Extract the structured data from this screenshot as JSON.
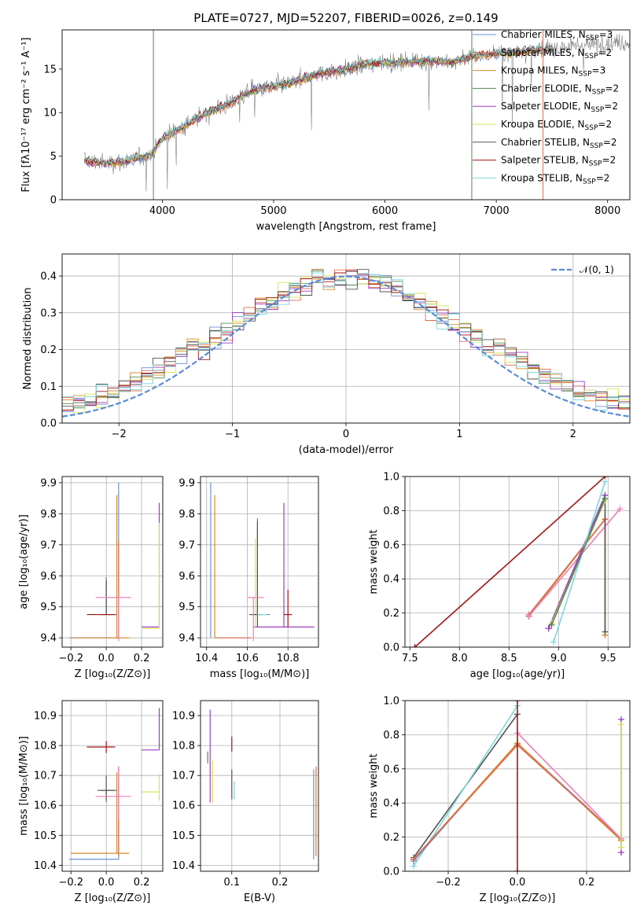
{
  "figure": {
    "title": "PLATE=0727, MJD=52207, FIBERID=0026, z=0.149"
  },
  "colors": {
    "Chabrier MILES": "#6b8fd6",
    "Salpeter MILES": "#e06a4c",
    "Kroupa MILES": "#d98c2a",
    "Chabrier ELODIE": "#4f8a4f",
    "Salpeter ELODIE": "#9b3fbf",
    "Kroupa ELODIE": "#d7e45a",
    "Chabrier STELIB": "#555555",
    "Salpeter STELIB": "#a01515",
    "Kroupa STELIB": "#7fd6dc",
    "data": "#808080",
    "normal": "#5b8bd6",
    "extra": "#e880b8"
  },
  "chart_data": [
    {
      "id": "spectrum",
      "type": "line",
      "title": "PLATE=0727, MJD=52207, FIBERID=0026, z=0.149",
      "xlabel": "wavelength [Angstrom, rest frame]",
      "ylabel": "Flux [fλ10⁻¹⁷ erg cm⁻² s⁻¹ A⁻¹]",
      "xlim": [
        3100,
        8200
      ],
      "ylim": [
        0,
        19.5
      ],
      "xticks": [
        4000,
        5000,
        6000,
        7000,
        8000
      ],
      "yticks": [
        0,
        5,
        10,
        15
      ],
      "grid": false,
      "legend_position": "top-right",
      "legend": [
        {
          "label": "Chabrier MILES, N",
          "sub": "SSP",
          "tail": "=3",
          "series": "Chabrier MILES"
        },
        {
          "label": "Salpeter MILES, N",
          "sub": "SSP",
          "tail": "=2",
          "series": "Salpeter MILES"
        },
        {
          "label": "Kroupa MILES, N",
          "sub": "SSP",
          "tail": "=3",
          "series": "Kroupa MILES"
        },
        {
          "label": "Chabrier ELODIE, N",
          "sub": "SSP",
          "tail": "=2",
          "series": "Chabrier ELODIE"
        },
        {
          "label": "Salpeter ELODIE, N",
          "sub": "SSP",
          "tail": "=2",
          "series": "Salpeter ELODIE"
        },
        {
          "label": "Kroupa ELODIE, N",
          "sub": "SSP",
          "tail": "=2",
          "series": "Kroupa ELODIE"
        },
        {
          "label": "Chabrier STELIB, N",
          "sub": "SSP",
          "tail": "=2",
          "series": "Chabrier STELIB"
        },
        {
          "label": "Salpeter STELIB, N",
          "sub": "SSP",
          "tail": "=2",
          "series": "Salpeter STELIB"
        },
        {
          "label": "Kroupa STELIB, N",
          "sub": "SSP",
          "tail": "=2",
          "series": "Kroupa STELIB"
        }
      ],
      "continuum": {
        "x": [
          3300,
          3500,
          3700,
          3900,
          4000,
          4200,
          4400,
          4600,
          4800,
          5000,
          5200,
          5400,
          5600,
          5800,
          6000,
          6200,
          6400,
          6600,
          6800,
          7000,
          7200,
          7400,
          7600,
          7800,
          8000
        ],
        "y": [
          4.5,
          4.2,
          4.5,
          5.2,
          7.0,
          8.5,
          10.0,
          11.0,
          12.5,
          13.0,
          13.5,
          14.5,
          14.8,
          15.5,
          15.8,
          15.8,
          16.0,
          15.8,
          16.5,
          16.8,
          17.0,
          17.2,
          17.5,
          17.8,
          18.0
        ]
      },
      "models_xrange": [
        3300,
        7500
      ],
      "vertical_lines": [
        {
          "x": 3920,
          "series": "Chabrier ELODIE"
        },
        {
          "x": 6780,
          "series": "Chabrier ELODIE"
        },
        {
          "x": 7420,
          "series": "Salpeter MILES"
        }
      ]
    },
    {
      "id": "residuals",
      "type": "histogram",
      "xlabel": "(data-model)/error",
      "ylabel": "Normed distribution",
      "xlim": [
        -2.5,
        2.5
      ],
      "ylim": [
        0,
        0.46
      ],
      "xticks": [
        -2,
        -1,
        0,
        1,
        2
      ],
      "yticks": [
        0.0,
        0.1,
        0.2,
        0.3,
        0.4
      ],
      "grid": true,
      "legend_position": "top-right",
      "legend": [
        {
          "label": "𝒩(0, 1)",
          "series": "normal"
        }
      ],
      "bin_width": 0.1,
      "normal": {
        "mean": 0,
        "sigma": 1
      }
    },
    {
      "id": "age-vs-Z",
      "type": "errorbar",
      "xlabel": "Z [log₁₀(Z/Z⊙)]",
      "ylabel": "age  [log₁₀(age/yr)]",
      "xlim": [
        -0.25,
        0.32
      ],
      "ylim": [
        9.37,
        9.92
      ],
      "xticks": [
        -0.2,
        0.0,
        0.2
      ],
      "yticks": [
        9.4,
        9.5,
        9.6,
        9.7,
        9.8,
        9.9
      ],
      "grid": true,
      "points": [
        {
          "x": 0.07,
          "y": 9.4,
          "xerr": [
            0.28,
            0.0
          ],
          "yerr": [
            0.0,
            0.5
          ],
          "series": "Chabrier MILES"
        },
        {
          "x": 0.07,
          "y": 9.4,
          "xerr": [
            0.0,
            0.0
          ],
          "yerr": [
            0.0,
            0.31
          ],
          "series": "Salpeter MILES"
        },
        {
          "x": 0.06,
          "y": 9.4,
          "xerr": [
            0.26,
            0.07
          ],
          "yerr": [
            0.0,
            0.46
          ],
          "series": "Kroupa MILES"
        },
        {
          "x": 0.0,
          "y": 9.475,
          "xerr": [
            0.03,
            0.06
          ],
          "yerr": [
            0.0,
            0.12
          ],
          "series": "Chabrier ELODIE"
        },
        {
          "x": 0.3,
          "y": 9.435,
          "xerr": [
            0.1,
            0.0
          ],
          "yerr": [
            0.0,
            0.4
          ],
          "series": "Salpeter ELODIE"
        },
        {
          "x": 0.3,
          "y": 9.43,
          "xerr": [
            0.1,
            0.0
          ],
          "yerr": [
            0.0,
            0.34
          ],
          "series": "Kroupa ELODIE"
        },
        {
          "x": 0.0,
          "y": 9.475,
          "xerr": [
            0.05,
            0.05
          ],
          "yerr": [
            0.0,
            0.11
          ],
          "series": "Chabrier STELIB"
        },
        {
          "x": 0.0,
          "y": 9.475,
          "xerr": [
            0.11,
            0.05
          ],
          "yerr": [
            0.0,
            0.0
          ],
          "series": "Salpeter STELIB"
        },
        {
          "x": 0.0,
          "y": 9.475,
          "xerr": [
            0.0,
            0.0
          ],
          "yerr": [
            0.0,
            0.0
          ],
          "series": "Kroupa STELIB"
        },
        {
          "x": 0.07,
          "y": 9.53,
          "xerr": [
            0.13,
            0.07
          ],
          "yerr": [
            0.14,
            0.0
          ],
          "series": "extra"
        }
      ]
    },
    {
      "id": "age-vs-mass",
      "type": "errorbar",
      "xlabel": "mass [log₁₀(M/M⊙)]",
      "ylabel": "",
      "xlim": [
        10.37,
        10.95
      ],
      "ylim": [
        9.37,
        9.92
      ],
      "xticks": [
        10.4,
        10.6,
        10.8
      ],
      "yticks": [
        9.4,
        9.5,
        9.6,
        9.7,
        9.8,
        9.9
      ],
      "grid": true,
      "points": [
        {
          "x": 10.42,
          "y": 9.4,
          "xerr": [
            0.0,
            0.0
          ],
          "yerr": [
            0.0,
            0.5
          ],
          "series": "Chabrier MILES"
        },
        {
          "x": 10.44,
          "y": 9.4,
          "xerr": [
            0.0,
            0.0
          ],
          "yerr": [
            0.0,
            0.46
          ],
          "series": "Kroupa MILES"
        },
        {
          "x": 10.44,
          "y": 9.4,
          "xerr": [
            0.0,
            0.18
          ],
          "yerr": [
            0.0,
            0.0
          ],
          "series": "Salpeter MILES"
        },
        {
          "x": 10.65,
          "y": 9.475,
          "xerr": [
            0.03,
            0.06
          ],
          "yerr": [
            0.0,
            0.31
          ],
          "series": "Chabrier ELODIE"
        },
        {
          "x": 10.78,
          "y": 9.435,
          "xerr": [
            0.15,
            0.15
          ],
          "yerr": [
            0.0,
            0.4
          ],
          "series": "Salpeter ELODIE"
        },
        {
          "x": 10.64,
          "y": 9.43,
          "xerr": [
            0.0,
            0.0
          ],
          "yerr": [
            0.0,
            0.29
          ],
          "series": "Kroupa ELODIE"
        },
        {
          "x": 10.65,
          "y": 9.475,
          "xerr": [
            0.04,
            0.02
          ],
          "yerr": [
            0.04,
            0.3
          ],
          "series": "Chabrier STELIB"
        },
        {
          "x": 10.8,
          "y": 9.475,
          "xerr": [
            0.02,
            0.02
          ],
          "yerr": [
            0.04,
            0.08
          ],
          "series": "Salpeter STELIB"
        },
        {
          "x": 10.65,
          "y": 9.475,
          "xerr": [
            0.0,
            0.05
          ],
          "yerr": [
            0.0,
            0.0
          ],
          "series": "Kroupa STELIB"
        },
        {
          "x": 10.63,
          "y": 9.53,
          "xerr": [
            0.03,
            0.05
          ],
          "yerr": [
            0.14,
            0.0
          ],
          "series": "extra"
        }
      ]
    },
    {
      "id": "weight-vs-age",
      "type": "line",
      "xlabel": "age  [log₁₀(age/yr)]",
      "ylabel": "mass weight",
      "xlim": [
        7.45,
        9.72
      ],
      "ylim": [
        0,
        1.0
      ],
      "xticks": [
        7.5,
        8.0,
        8.5,
        9.0,
        9.5
      ],
      "yticks": [
        0.0,
        0.2,
        0.4,
        0.6,
        0.8,
        1.0
      ],
      "grid": true,
      "series": [
        {
          "name": "Salpeter STELIB",
          "x": [
            7.55,
            9.47
          ],
          "y": [
            0.0,
            1.0
          ]
        },
        {
          "name": "Chabrier MILES",
          "x": [
            8.7,
            9.47
          ],
          "y": [
            0.18,
            0.75
          ]
        },
        {
          "name": "Kroupa MILES",
          "x": [
            8.7,
            9.47,
            9.47
          ],
          "y": [
            0.18,
            0.75,
            0.07
          ]
        },
        {
          "name": "Salpeter MILES",
          "x": [
            8.7,
            9.47
          ],
          "y": [
            0.19,
            0.75
          ]
        },
        {
          "name": "extra",
          "x": [
            8.7,
            9.62
          ],
          "y": [
            0.18,
            0.81
          ]
        },
        {
          "name": "Chabrier STELIB",
          "x": [
            8.9,
            9.47,
            9.47
          ],
          "y": [
            0.11,
            0.89,
            0.09
          ]
        },
        {
          "name": "Salpeter ELODIE",
          "x": [
            8.9,
            9.47
          ],
          "y": [
            0.11,
            0.89
          ]
        },
        {
          "name": "Kroupa ELODIE",
          "x": [
            8.93,
            9.47
          ],
          "y": [
            0.14,
            0.86
          ]
        },
        {
          "name": "Kroupa STELIB",
          "x": [
            8.95,
            9.47
          ],
          "y": [
            0.03,
            0.97
          ]
        },
        {
          "name": "Chabrier ELODIE",
          "x": [
            8.93,
            9.47
          ],
          "y": [
            0.13,
            0.87
          ]
        }
      ]
    },
    {
      "id": "mass-vs-Z",
      "type": "errorbar",
      "xlabel": "Z [log₁₀(Z/Z⊙)]",
      "ylabel": "mass [log₁₀(M/M⊙)]",
      "xlim": [
        -0.25,
        0.32
      ],
      "ylim": [
        10.38,
        10.95
      ],
      "xticks": [
        -0.2,
        0.0,
        0.2
      ],
      "yticks": [
        10.4,
        10.5,
        10.6,
        10.7,
        10.8,
        10.9
      ],
      "grid": true,
      "points": [
        {
          "x": 0.07,
          "y": 10.42,
          "xerr": [
            0.28,
            0.0
          ],
          "yerr": [
            0.0,
            0.3
          ],
          "series": "Chabrier MILES"
        },
        {
          "x": 0.07,
          "y": 10.43,
          "xerr": [
            0.0,
            0.0
          ],
          "yerr": [
            0.0,
            0.3
          ],
          "series": "Salpeter MILES"
        },
        {
          "x": 0.06,
          "y": 10.44,
          "xerr": [
            0.26,
            0.07
          ],
          "yerr": [
            0.0,
            0.27
          ],
          "series": "Kroupa MILES"
        },
        {
          "x": 0.0,
          "y": 10.65,
          "xerr": [
            0.03,
            0.06
          ],
          "yerr": [
            0.04,
            0.0
          ],
          "series": "Chabrier ELODIE"
        },
        {
          "x": 0.3,
          "y": 10.785,
          "xerr": [
            0.1,
            0.0
          ],
          "yerr": [
            0.0,
            0.14
          ],
          "series": "Salpeter ELODIE"
        },
        {
          "x": 0.3,
          "y": 10.645,
          "xerr": [
            0.1,
            0.0
          ],
          "yerr": [
            0.03,
            0.06
          ],
          "series": "Kroupa ELODIE"
        },
        {
          "x": 0.0,
          "y": 10.65,
          "xerr": [
            0.05,
            0.05
          ],
          "yerr": [
            0.03,
            0.05
          ],
          "series": "Chabrier STELIB"
        },
        {
          "x": 0.0,
          "y": 10.795,
          "xerr": [
            0.11,
            0.05
          ],
          "yerr": [
            0.02,
            0.02
          ],
          "series": "Salpeter STELIB"
        },
        {
          "x": 0.0,
          "y": 10.65,
          "xerr": [
            0.0,
            0.0
          ],
          "yerr": [
            0.0,
            0.0
          ],
          "series": "Kroupa STELIB"
        },
        {
          "x": 0.07,
          "y": 10.63,
          "xerr": [
            0.13,
            0.07
          ],
          "yerr": [
            0.08,
            0.1
          ],
          "series": "extra"
        }
      ]
    },
    {
      "id": "mass-vs-ebv",
      "type": "errorbar",
      "xlabel": "E(B-V)",
      "ylabel": "",
      "xlim": [
        0.035,
        0.28
      ],
      "ylim": [
        10.38,
        10.95
      ],
      "xticks": [
        0.1,
        0.2
      ],
      "yticks": [
        10.4,
        10.5,
        10.6,
        10.7,
        10.8,
        10.9
      ],
      "grid": true,
      "points": [
        {
          "x": 0.27,
          "y": 10.42,
          "xerr": [
            0.0,
            0.0
          ],
          "yerr": [
            0.0,
            0.3
          ],
          "series": "Chabrier MILES"
        },
        {
          "x": 0.275,
          "y": 10.43,
          "xerr": [
            0.0,
            0.0
          ],
          "yerr": [
            0.0,
            0.3
          ],
          "series": "Salpeter MILES"
        },
        {
          "x": 0.275,
          "y": 10.44,
          "xerr": [
            0.0,
            0.0
          ],
          "yerr": [
            0.0,
            0.27
          ],
          "series": "Kroupa MILES"
        },
        {
          "x": 0.05,
          "y": 10.76,
          "xerr": [
            0.0,
            0.0
          ],
          "yerr": [
            0.02,
            0.02
          ],
          "series": "Chabrier ELODIE"
        },
        {
          "x": 0.055,
          "y": 10.79,
          "xerr": [
            0.0,
            0.0
          ],
          "yerr": [
            0.18,
            0.13
          ],
          "series": "Salpeter ELODIE"
        },
        {
          "x": 0.06,
          "y": 10.68,
          "xerr": [
            0.0,
            0.0
          ],
          "yerr": [
            0.07,
            0.07
          ],
          "series": "Kroupa ELODIE"
        },
        {
          "x": 0.1,
          "y": 10.67,
          "xerr": [
            0.0,
            0.0
          ],
          "yerr": [
            0.05,
            0.05
          ],
          "series": "Chabrier STELIB"
        },
        {
          "x": 0.1,
          "y": 10.805,
          "xerr": [
            0.0,
            0.0
          ],
          "yerr": [
            0.025,
            0.025
          ],
          "series": "Salpeter STELIB"
        },
        {
          "x": 0.105,
          "y": 10.65,
          "xerr": [
            0.0,
            0.0
          ],
          "yerr": [
            0.03,
            0.03
          ],
          "series": "Kroupa STELIB"
        }
      ]
    },
    {
      "id": "weight-vs-Z",
      "type": "line",
      "xlabel": "Z [log₁₀(Z/Z⊙)]",
      "ylabel": "mass weight",
      "xlim": [
        -0.325,
        0.325
      ],
      "ylim": [
        0,
        1.0
      ],
      "xticks": [
        -0.2,
        0.0,
        0.2
      ],
      "yticks": [
        0.0,
        0.2,
        0.4,
        0.6,
        0.8,
        1.0
      ],
      "grid": true,
      "series": [
        {
          "name": "Chabrier STELIB",
          "x": [
            -0.3,
            0.0
          ],
          "y": [
            0.08,
            0.92
          ]
        },
        {
          "name": "Kroupa STELIB",
          "x": [
            -0.3,
            0.0
          ],
          "y": [
            0.03,
            0.97
          ]
        },
        {
          "name": "Chabrier MILES",
          "x": [
            -0.3,
            0.0,
            0.3
          ],
          "y": [
            0.06,
            0.75,
            0.19
          ]
        },
        {
          "name": "Kroupa MILES",
          "x": [
            -0.3,
            0.0,
            0.3
          ],
          "y": [
            0.07,
            0.75,
            0.18
          ]
        },
        {
          "name": "Salpeter MILES",
          "x": [
            -0.3,
            0.0,
            0.3
          ],
          "y": [
            0.07,
            0.74,
            0.19
          ]
        },
        {
          "name": "extra",
          "x": [
            0.0,
            0.3
          ],
          "y": [
            0.81,
            0.19
          ]
        },
        {
          "name": "Salpeter ELODIE",
          "x": [
            0.3,
            0.3
          ],
          "y": [
            0.11,
            0.89
          ]
        },
        {
          "name": "Kroupa ELODIE",
          "x": [
            0.3,
            0.3
          ],
          "y": [
            0.14,
            0.86
          ]
        },
        {
          "name": "Salpeter STELIB",
          "x": [
            0.0,
            0.0
          ],
          "y": [
            0.0,
            1.0
          ]
        }
      ]
    }
  ]
}
